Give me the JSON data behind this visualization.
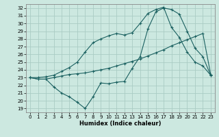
{
  "title": "",
  "xlabel": "Humidex (Indice chaleur)",
  "xlim": [
    -0.5,
    23.5
  ],
  "ylim": [
    18.5,
    32.5
  ],
  "xticks": [
    0,
    1,
    2,
    3,
    4,
    5,
    6,
    7,
    8,
    9,
    10,
    11,
    12,
    13,
    14,
    15,
    16,
    17,
    18,
    19,
    20,
    21,
    22,
    23
  ],
  "yticks": [
    19,
    20,
    21,
    22,
    23,
    24,
    25,
    26,
    27,
    28,
    29,
    30,
    31,
    32
  ],
  "bg_color": "#cce8e0",
  "grid_color": "#aaccc4",
  "line_color": "#1a6060",
  "line1_x": [
    0,
    1,
    2,
    3,
    4,
    5,
    6,
    7,
    8,
    9,
    10,
    11,
    12,
    13,
    14,
    15,
    16,
    17,
    18,
    19,
    20,
    21,
    22,
    23
  ],
  "line1_y": [
    23,
    22.8,
    22.8,
    23.0,
    23.2,
    23.4,
    23.5,
    23.6,
    23.8,
    24.0,
    24.2,
    24.5,
    24.8,
    25.1,
    25.4,
    25.8,
    26.2,
    26.6,
    27.1,
    27.5,
    27.9,
    28.3,
    28.7,
    23.4
  ],
  "line2_x": [
    0,
    1,
    2,
    3,
    4,
    5,
    6,
    7,
    8,
    9,
    10,
    11,
    12,
    13,
    14,
    15,
    16,
    17,
    18,
    19,
    20,
    21,
    22,
    23
  ],
  "line2_y": [
    23,
    22.8,
    22.8,
    21.8,
    21.0,
    20.5,
    19.8,
    19.0,
    20.5,
    22.3,
    22.2,
    22.4,
    22.5,
    24.2,
    25.7,
    29.3,
    31.5,
    32.0,
    31.8,
    31.2,
    29.0,
    26.8,
    25.7,
    23.3
  ],
  "line3_x": [
    0,
    1,
    2,
    3,
    4,
    5,
    6,
    7,
    8,
    9,
    10,
    11,
    12,
    13,
    14,
    15,
    16,
    17,
    18,
    19,
    20,
    21,
    22,
    23
  ],
  "line3_y": [
    23,
    23.0,
    23.1,
    23.3,
    23.8,
    24.3,
    25.0,
    26.3,
    27.5,
    28.0,
    28.4,
    28.7,
    28.5,
    28.8,
    30.0,
    31.3,
    31.8,
    32.1,
    29.5,
    28.2,
    26.3,
    25.0,
    24.5,
    23.3
  ]
}
